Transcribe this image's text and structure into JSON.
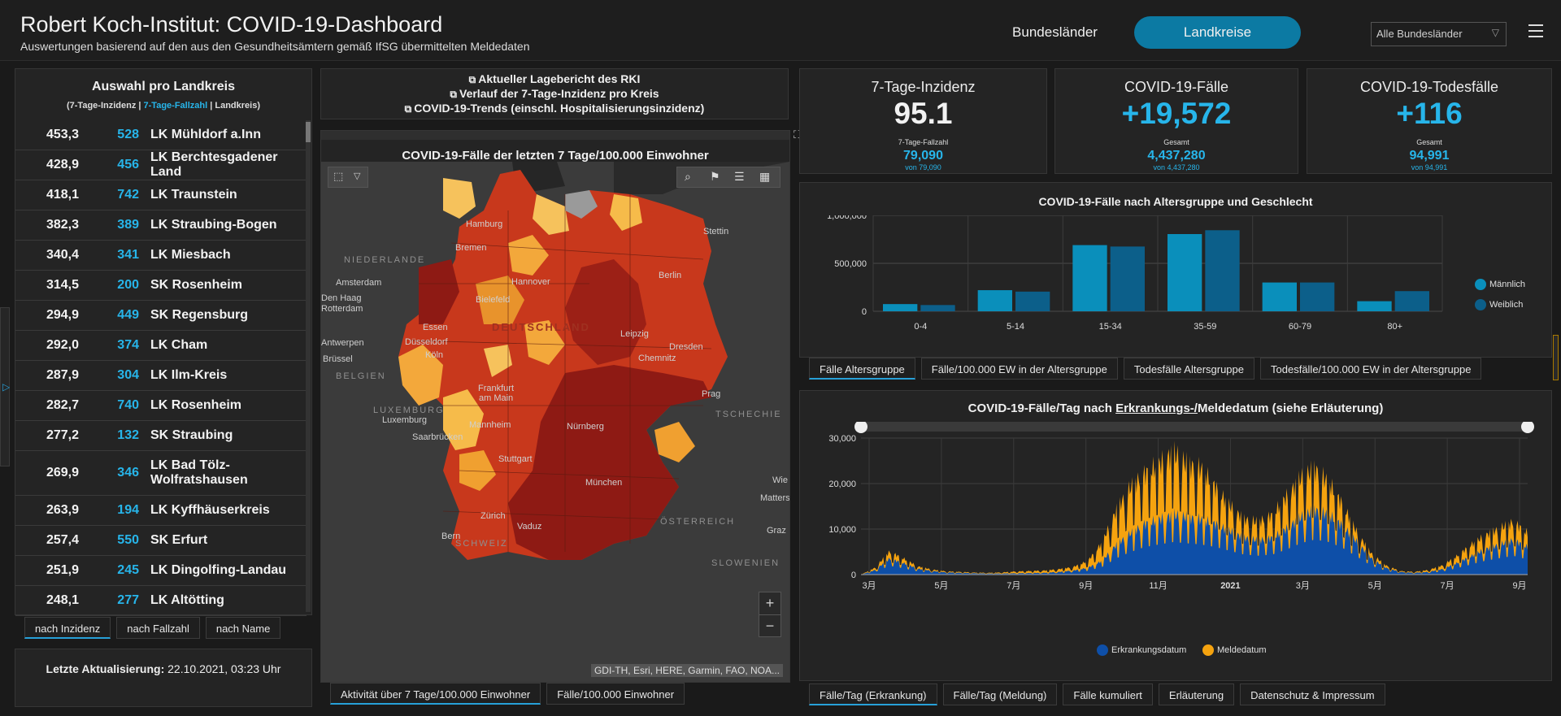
{
  "header": {
    "title": "Robert Koch-Institut: COVID-19-Dashboard",
    "subtitle": "Auswertungen basierend auf den aus den Gesundheitsämtern gemäß IfSG übermittelten Meldedaten",
    "nav_bundeslaender": "Bundesländer",
    "nav_landkreise": "Landkreise",
    "select_value": "Alle Bundesländer"
  },
  "list": {
    "title": "Auswahl pro Landkreis",
    "sub_open": "(7-Tage-Inzidenz | ",
    "sub_blue": "7-Tage-Fallzahl",
    "sub_close": " | Landkreis)",
    "rows": [
      {
        "inz": "453,3",
        "fz": "528",
        "name": "LK Mühldorf a.Inn"
      },
      {
        "inz": "428,9",
        "fz": "456",
        "name": "LK Berchtesgadener Land"
      },
      {
        "inz": "418,1",
        "fz": "742",
        "name": "LK Traunstein"
      },
      {
        "inz": "382,3",
        "fz": "389",
        "name": "LK Straubing-Bogen"
      },
      {
        "inz": "340,4",
        "fz": "341",
        "name": "LK Miesbach"
      },
      {
        "inz": "314,5",
        "fz": "200",
        "name": "SK Rosenheim"
      },
      {
        "inz": "294,9",
        "fz": "449",
        "name": "SK Regensburg"
      },
      {
        "inz": "292,0",
        "fz": "374",
        "name": "LK Cham"
      },
      {
        "inz": "287,9",
        "fz": "304",
        "name": "LK Ilm-Kreis"
      },
      {
        "inz": "282,7",
        "fz": "740",
        "name": "LK Rosenheim"
      },
      {
        "inz": "277,2",
        "fz": "132",
        "name": "SK Straubing"
      },
      {
        "inz": "269,9",
        "fz": "346",
        "name": "LK Bad Tölz-Wolfratshausen"
      },
      {
        "inz": "263,9",
        "fz": "194",
        "name": "LK Kyffhäuserkreis"
      },
      {
        "inz": "257,4",
        "fz": "550",
        "name": "SK Erfurt"
      },
      {
        "inz": "251,9",
        "fz": "245",
        "name": "LK Dingolfing-Landau"
      },
      {
        "inz": "248,1",
        "fz": "277",
        "name": "LK Altötting"
      }
    ],
    "tabs": [
      "nach Inzidenz",
      "nach Fallzahl",
      "nach Name"
    ]
  },
  "update": {
    "label": "Letzte Aktualisierung:",
    "value": "22.10.2021, 03:23 Uhr"
  },
  "links": [
    "Aktueller Lagebericht des RKI",
    "Verlauf der 7-Tage-Inzidenz pro Kreis",
    "COVID-19-Trends (einschl. Hospitalisierungsinzidenz)"
  ],
  "map": {
    "title": "COVID-19-Fälle der letzten 7 Tage/100.000 Einwohner",
    "attribution": "GDI-TH, Esri, HERE, Garmin, FAO, NOA...",
    "zoom_in": "+",
    "zoom_out": "−",
    "labels": {
      "hamburg": "Hamburg",
      "bremen": "Bremen",
      "stettin": "Stettin",
      "niederlande": "NIEDERLANDE",
      "amsterdam": "Amsterdam",
      "hannover": "Hannover",
      "berlin": "Berlin",
      "denhaag": "Den Haag",
      "rotterdam": "Rotterdam",
      "bielefeld": "Bielefeld",
      "deutschland": "DEUTSCHLAND",
      "essen": "Essen",
      "leipzig": "Leipzig",
      "antwerpen": "Antwerpen",
      "duesseldorf": "Düsseldorf",
      "dresden": "Dresden",
      "koeln": "Köln",
      "bruessel": "Brüssel",
      "chemnitz": "Chemnitz",
      "belgien": "BELGIEN",
      "frankfurt1": "Frankfurt",
      "frankfurt2": "am Main",
      "prag": "Prag",
      "luxemburg": "LUXEMBURG",
      "luxembourg": "Luxemburg",
      "tschechien": "TSCHECHIE",
      "mannheim": "Mannheim",
      "nuernberg": "Nürnberg",
      "saarbruecken": "Saarbrücken",
      "stuttgart": "Stuttgart",
      "muenchen": "München",
      "wien": "Wie",
      "matters": "Matters",
      "zuerich": "Zürich",
      "vaduz": "Vaduz",
      "oesterreich": "ÖSTERREICH",
      "bern": "Bern",
      "schweiz": "SCHWEIZ",
      "graz": "Graz",
      "slowenien": "SLOWENIEN"
    },
    "tabs": [
      "Aktivität über 7 Tage/100.000 Einwohner",
      "Fälle/100.000 Einwohner"
    ]
  },
  "kpi": [
    {
      "title": "7-Tage-Inzidenz",
      "value": "95.1",
      "sub_label": "7-Tage-Fallzahl",
      "sub_value": "79,090",
      "sub_note": "von 79,090",
      "color": "#f2f2f2"
    },
    {
      "title": "COVID-19-Fälle",
      "value": "+19,572",
      "sub_label": "Gesamt",
      "sub_value": "4,437,280",
      "sub_note": "von 4,437,280",
      "color": "#27b5ea"
    },
    {
      "title": "COVID-19-Todesfälle",
      "value": "+116",
      "sub_label": "Gesamt",
      "sub_value": "94,991",
      "sub_note": "von 94,991",
      "color": "#27b5ea"
    }
  ],
  "age_chart": {
    "title": "COVID-19-Fälle nach Altersgruppe und Geschlecht",
    "legend": [
      "Männlich",
      "Weiblich"
    ],
    "tabs": [
      "Fälle Altersgruppe",
      "Fälle/100.000 EW in der Altersgruppe",
      "Todesfälle Altersgruppe",
      "Todesfälle/100.000 EW in der Altersgruppe"
    ]
  },
  "time_chart": {
    "title_pre": "COVID-19-Fälle/Tag nach ",
    "title_u": "Erkrankungs-/",
    "title_post": "Meldedatum (siehe Erläuterung)",
    "legend": [
      "Erkrankungsdatum",
      "Meldedatum"
    ],
    "tabs": [
      "Fälle/Tag (Erkrankung)",
      "Fälle/Tag (Meldung)",
      "Fälle kumuliert",
      "Erläuterung",
      "Datenschutz & Impressum"
    ]
  },
  "chart_data": [
    {
      "type": "bar",
      "title": "COVID-19-Fälle nach Altersgruppe und Geschlecht",
      "categories": [
        "0-4",
        "5-14",
        "15-34",
        "35-59",
        "60-79",
        "80+"
      ],
      "series": [
        {
          "name": "Männlich",
          "values": [
            75000,
            220000,
            690000,
            805000,
            300000,
            105000
          ],
          "color": "#0a8fbb"
        },
        {
          "name": "Weiblich",
          "values": [
            65000,
            205000,
            675000,
            845000,
            300000,
            210000
          ],
          "color": "#0c5f8a"
        }
      ],
      "ylim": [
        0,
        1000000
      ],
      "yticks": [
        "0",
        "500,000",
        "1,000,000"
      ],
      "grid": true,
      "legend_position": "right"
    },
    {
      "type": "area",
      "title": "COVID-19-Fälle/Tag nach Erkrankungs-/Meldedatum (siehe Erläuterung)",
      "x_ticks": [
        "3月",
        "5月",
        "7月",
        "9月",
        "11月",
        "2021",
        "3月",
        "5月",
        "7月",
        "9月"
      ],
      "yticks": [
        "0",
        "10,000",
        "20,000",
        "30,000"
      ],
      "ylim": [
        0,
        30000
      ],
      "series": [
        {
          "name": "Erkrankungsdatum",
          "color": "#0e4fa8",
          "profile": [
            0,
            1000,
            3500,
            2500,
            1300,
            800,
            500,
            400,
            300,
            250,
            250,
            300,
            350,
            400,
            600,
            900,
            1500,
            3000,
            6500,
            9000,
            11000,
            12000,
            13000,
            12500,
            12000,
            11000,
            9500,
            8000,
            7500,
            8000,
            10000,
            12500,
            14000,
            13000,
            10500,
            7000,
            3500,
            1500,
            600,
            400,
            600,
            1200,
            2500,
            4000,
            5500,
            6500,
            7500,
            6000
          ]
        },
        {
          "name": "Meldedatum",
          "color": "#f5a30f",
          "profile": [
            0,
            1500,
            5000,
            3500,
            1800,
            1100,
            700,
            600,
            450,
            400,
            500,
            700,
            800,
            900,
            1200,
            1700,
            3000,
            7000,
            14000,
            19000,
            22000,
            24000,
            26500,
            24000,
            23000,
            19000,
            15000,
            12000,
            11500,
            13000,
            17000,
            21000,
            23000,
            20000,
            15000,
            9000,
            4500,
            2000,
            800,
            600,
            1000,
            2000,
            4000,
            6500,
            8500,
            10000,
            11500,
            9000
          ]
        }
      ],
      "legend_position": "bottom"
    }
  ]
}
